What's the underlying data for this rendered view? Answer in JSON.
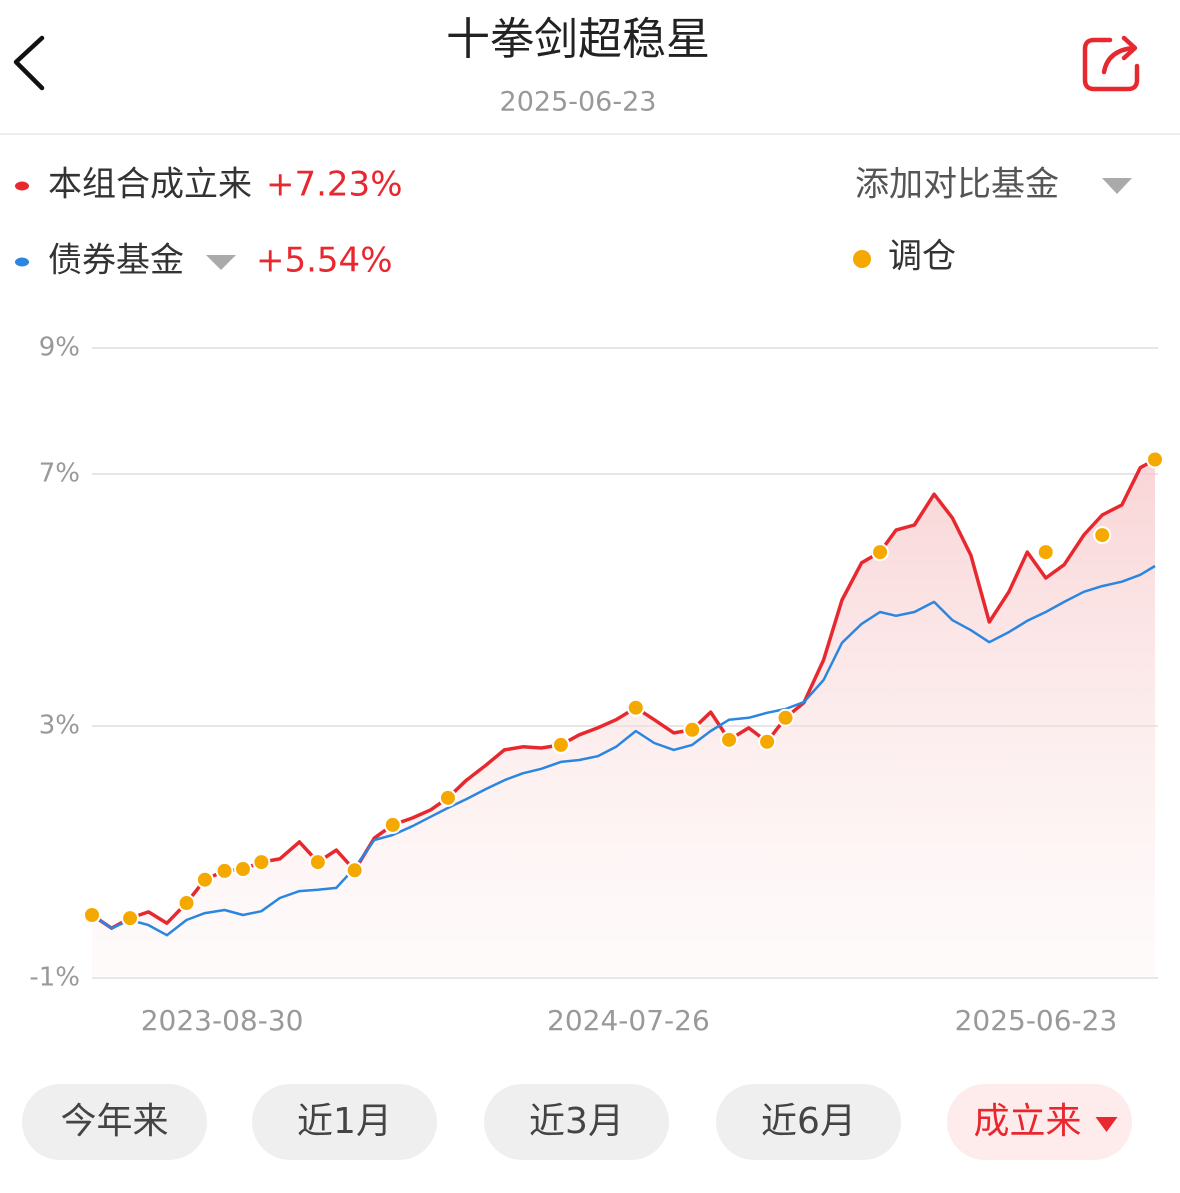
{
  "header": {
    "title": "十拳剑超稳星",
    "date": "2025-06-23"
  },
  "controls": {
    "compare": "添加对比基金"
  },
  "range_tabs": [
    "今年来",
    "近1月",
    "近3月",
    "近6月",
    "成立来"
  ],
  "active_tab": 4,
  "chart_data": {
    "type": "line",
    "x": [
      "2023-05-16",
      "2023-06-01",
      "2023-06-16",
      "2023-07-01",
      "2023-07-16",
      "2023-08-01",
      "2023-08-16",
      "2023-09-01",
      "2023-09-16",
      "2023-10-01",
      "2023-10-16",
      "2023-11-01",
      "2023-11-16",
      "2023-12-01",
      "2023-12-16",
      "2024-01-01",
      "2024-01-16",
      "2024-02-01",
      "2024-02-16",
      "2024-03-01",
      "2024-03-16",
      "2024-04-01",
      "2024-04-16",
      "2024-05-01",
      "2024-05-16",
      "2024-06-01",
      "2024-06-16",
      "2024-07-01",
      "2024-07-16",
      "2024-08-01",
      "2024-08-16",
      "2024-09-01",
      "2024-09-16",
      "2024-10-01",
      "2024-10-16",
      "2024-11-01",
      "2024-11-16",
      "2024-12-01",
      "2024-12-16",
      "2025-01-01",
      "2025-01-16",
      "2025-02-01",
      "2025-02-16",
      "2025-03-01",
      "2025-03-16",
      "2025-04-01",
      "2025-04-16",
      "2025-05-01",
      "2025-05-16",
      "2025-06-01",
      "2025-06-16",
      "2025-07-01",
      "2025-07-16",
      "2025-08-01",
      "2025-08-16",
      "2025-09-01",
      "2025-09-16",
      "2025-09-28"
    ],
    "series": [
      {
        "name": "本组合成立来",
        "return_label": "+7.23%",
        "color": "#e8282f",
        "style": "line",
        "fill": true,
        "values": [
          0.0,
          -0.21,
          -0.05,
          0.05,
          -0.13,
          0.19,
          0.56,
          0.7,
          0.73,
          0.84,
          0.89,
          1.16,
          0.84,
          1.03,
          0.71,
          1.22,
          1.43,
          1.54,
          1.67,
          1.86,
          2.14,
          2.38,
          2.62,
          2.67,
          2.65,
          2.7,
          2.86,
          2.97,
          3.1,
          3.29,
          3.1,
          2.89,
          2.94,
          3.22,
          2.78,
          2.97,
          2.75,
          3.13,
          3.37,
          4.05,
          5.0,
          5.59,
          5.76,
          6.11,
          6.19,
          6.68,
          6.3,
          5.71,
          4.65,
          5.13,
          5.76,
          5.35,
          5.56,
          6.03,
          6.35,
          6.51,
          7.1,
          7.23
        ]
      },
      {
        "name": "债券基金",
        "return_label": "+5.54%",
        "color": "#2a86e0",
        "style": "line",
        "fill": false,
        "values": [
          0.0,
          -0.21,
          -0.08,
          -0.16,
          -0.32,
          -0.08,
          0.03,
          0.08,
          0.0,
          0.06,
          0.27,
          0.38,
          0.4,
          0.43,
          0.75,
          1.19,
          1.27,
          1.41,
          1.56,
          1.7,
          1.84,
          2.0,
          2.14,
          2.25,
          2.32,
          2.43,
          2.46,
          2.52,
          2.67,
          2.92,
          2.73,
          2.62,
          2.7,
          2.92,
          3.1,
          3.13,
          3.21,
          3.27,
          3.38,
          3.73,
          4.32,
          4.62,
          4.81,
          4.75,
          4.81,
          4.97,
          4.68,
          4.52,
          4.33,
          4.49,
          4.67,
          4.81,
          4.97,
          5.13,
          5.22,
          5.29,
          5.4,
          5.54
        ]
      },
      {
        "name": "调仓",
        "color": "#f5a800",
        "style": "dots",
        "fill": false,
        "values": [
          0.0,
          null,
          -0.05,
          null,
          null,
          0.19,
          0.56,
          0.7,
          0.73,
          0.84,
          null,
          null,
          0.84,
          null,
          0.71,
          null,
          1.43,
          null,
          null,
          1.86,
          null,
          null,
          null,
          null,
          null,
          2.7,
          null,
          null,
          null,
          3.29,
          null,
          null,
          2.94,
          null,
          2.78,
          null,
          2.75,
          3.13,
          null,
          null,
          null,
          null,
          5.76,
          null,
          null,
          null,
          null,
          null,
          null,
          null,
          null,
          5.76,
          null,
          null,
          6.03,
          null,
          null,
          7.23
        ]
      }
    ],
    "xlim": [
      "2023-05-16",
      "2025-09-28"
    ],
    "xticks": [
      "2023-08-30",
      "2024-07-26",
      "2025-06-23"
    ],
    "ylim": [
      -1,
      9
    ],
    "yticks": [
      {
        "value": -1,
        "label": "-1%"
      },
      {
        "value": 3,
        "label": "3%"
      },
      {
        "value": 7,
        "label": "7%"
      },
      {
        "value": 9,
        "label": "9%"
      }
    ],
    "grid": true
  }
}
